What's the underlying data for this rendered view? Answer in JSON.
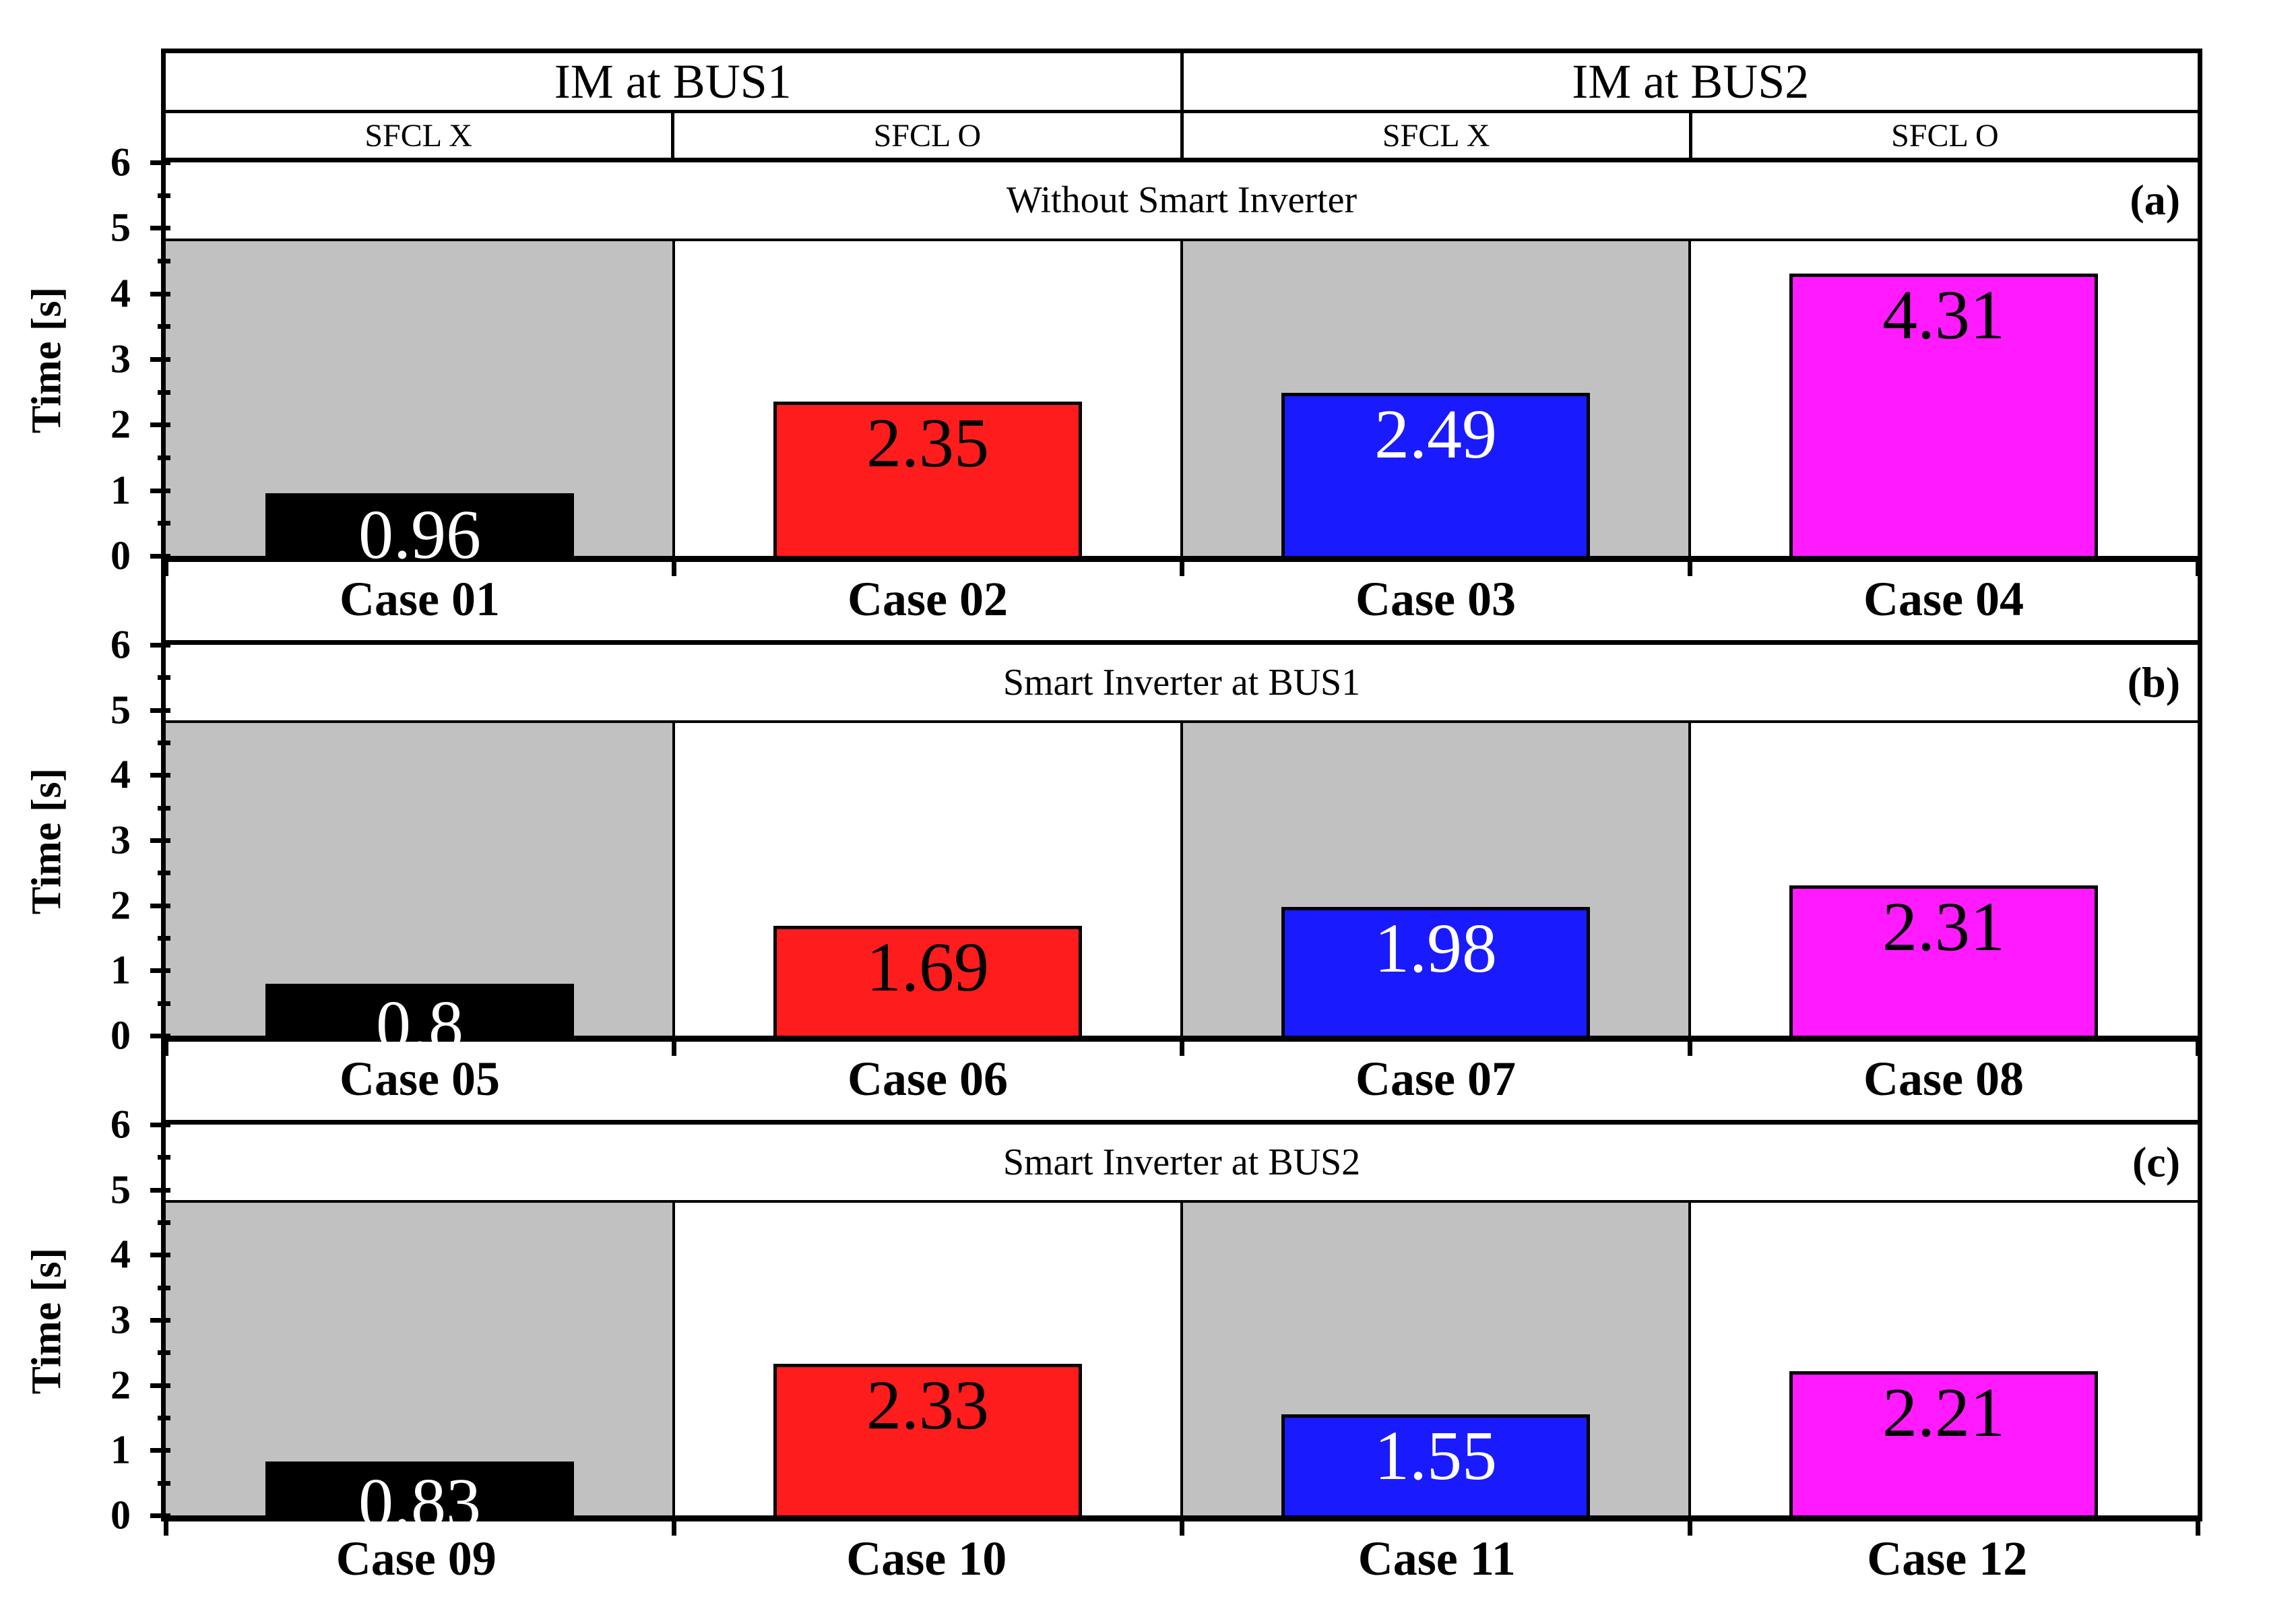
{
  "chart_data": {
    "type": "bar",
    "ylabel": "Time [s]",
    "ylim": [
      0,
      6
    ],
    "yticks": [
      0,
      1,
      2,
      3,
      4,
      5,
      6
    ],
    "minor_tick_step": 0.5,
    "grid": "off",
    "legend": "none",
    "bar_width_fraction": 0.61,
    "shaded_band_top": 4.8,
    "shade_color": "#c1c1c1",
    "axis_color": "#000000",
    "groups": [
      {
        "label": "IM at BUS1",
        "subcolumns": [
          "SFCL X",
          "SFCL O"
        ]
      },
      {
        "label": "IM at BUS2",
        "subcolumns": [
          "SFCL X",
          "SFCL O"
        ]
      }
    ],
    "panels": [
      {
        "tag": "(a)",
        "title": "Without Smart Inverter",
        "categories": [
          "Case 01",
          "Case 02",
          "Case 03",
          "Case 04"
        ],
        "values": [
          0.96,
          2.35,
          2.49,
          4.31
        ],
        "bar_colors": [
          "#000000",
          "#fe1c1c",
          "#1a1aff",
          "#ff1aff"
        ],
        "value_label_colors": [
          "#ffffff",
          "#000000",
          "#ffffff",
          "#000000"
        ],
        "shaded_columns": [
          0,
          2
        ]
      },
      {
        "tag": "(b)",
        "title": "Smart Inverter at BUS1",
        "categories": [
          "Case 05",
          "Case 06",
          "Case 07",
          "Case 08"
        ],
        "values": [
          0.8,
          1.69,
          1.98,
          2.31
        ],
        "bar_colors": [
          "#000000",
          "#fe1c1c",
          "#1a1aff",
          "#ff1aff"
        ],
        "value_label_colors": [
          "#ffffff",
          "#000000",
          "#ffffff",
          "#000000"
        ],
        "shaded_columns": [
          0,
          2
        ]
      },
      {
        "tag": "(c)",
        "title": "Smart Inverter at BUS2",
        "categories": [
          "Case 09",
          "Case 10",
          "Case 11",
          "Case 12"
        ],
        "values": [
          0.83,
          2.33,
          1.55,
          2.21
        ],
        "bar_colors": [
          "#000000",
          "#fe1c1c",
          "#1a1aff",
          "#ff1aff"
        ],
        "value_label_colors": [
          "#ffffff",
          "#000000",
          "#ffffff",
          "#000000"
        ],
        "shaded_columns": [
          0,
          2
        ]
      }
    ]
  }
}
